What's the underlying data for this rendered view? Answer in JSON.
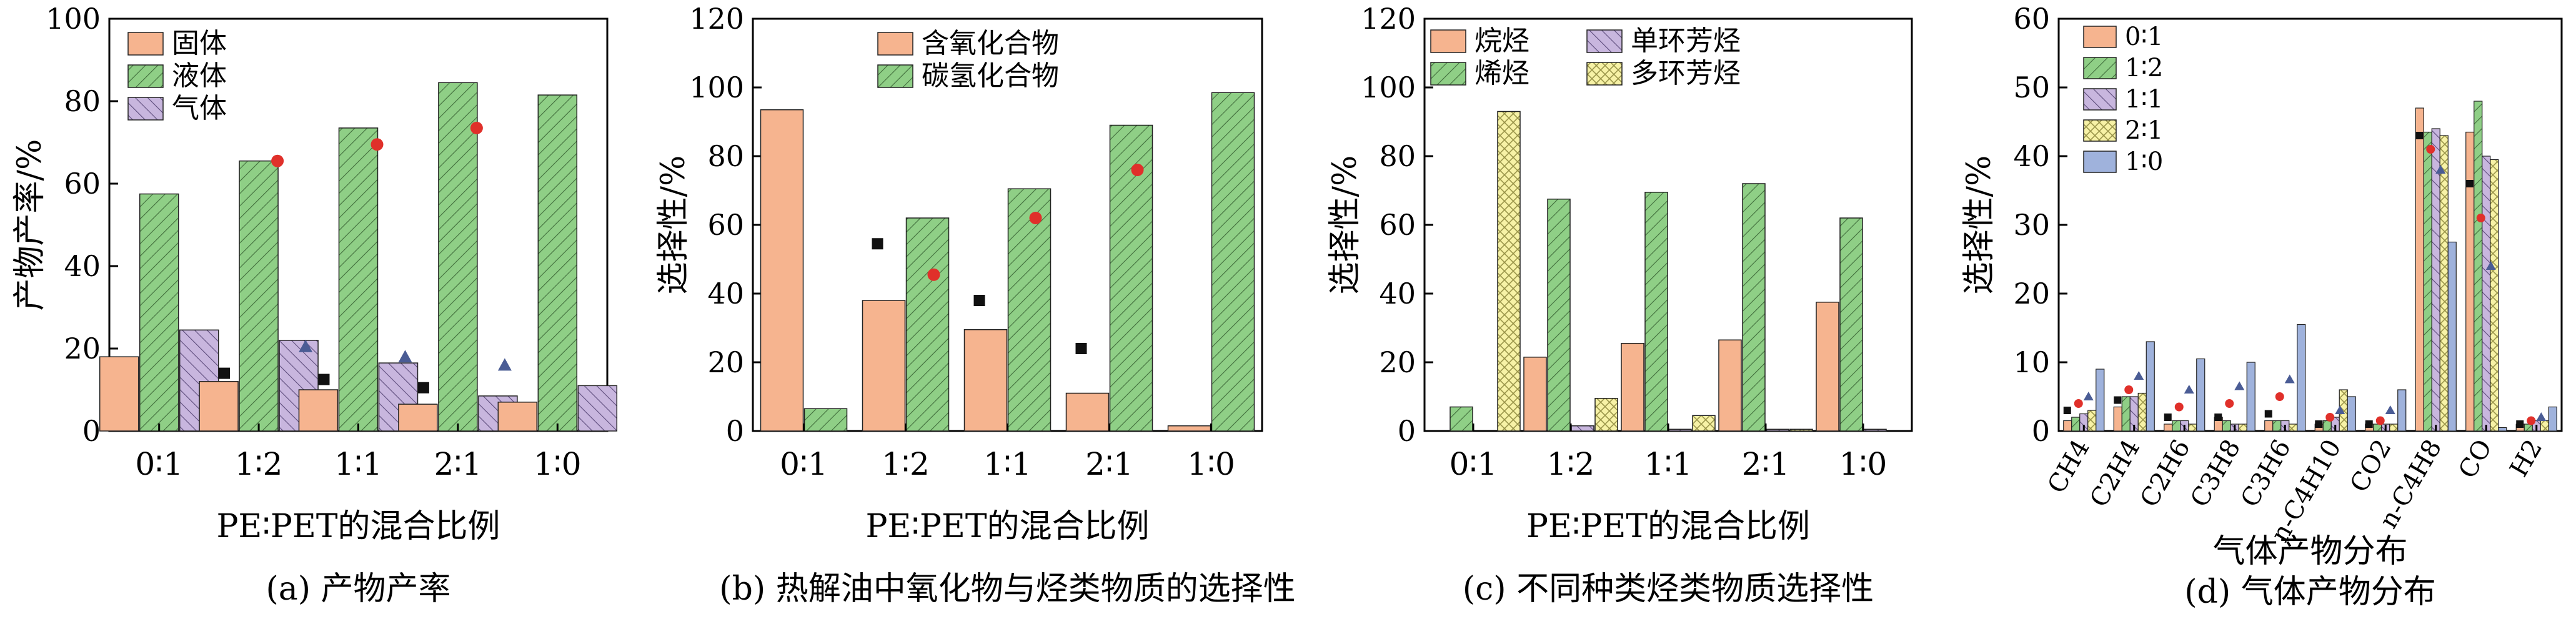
{
  "figure": {
    "charts": [
      {
        "subplot": "(a) 产物产率",
        "xlabel": "PE∶PET的混合比例",
        "ylabel": "产物产率/%",
        "ylim": [
          0,
          100
        ],
        "yticks": [
          0,
          20,
          40,
          60,
          80,
          100
        ],
        "categories": [
          "0∶1",
          "1∶2",
          "1∶1",
          "2∶1",
          "1∶0"
        ],
        "legend_position": "top-left"
      },
      {
        "subplot": "(b) 热解油中氧化物与烃类物质的选择性",
        "xlabel": "PE∶PET的混合比例",
        "ylabel": "选择性/%",
        "ylim": [
          0,
          120
        ],
        "yticks": [
          0,
          20,
          40,
          60,
          80,
          100,
          120
        ],
        "categories": [
          "0∶1",
          "1∶2",
          "1∶1",
          "2∶1",
          "1∶0"
        ],
        "legend_position": "top-left"
      },
      {
        "subplot": "(c) 不同种类烃类物质选择性",
        "xlabel": "PE∶PET的混合比例",
        "ylabel": "选择性/%",
        "ylim": [
          0,
          120
        ],
        "yticks": [
          0,
          20,
          40,
          60,
          80,
          100,
          120
        ],
        "categories": [
          "0∶1",
          "1∶2",
          "1∶1",
          "2∶1",
          "1∶0"
        ],
        "legend_position": "top-left"
      },
      {
        "subplot": "(d) 气体产物分布",
        "xlabel": "气体产物分布",
        "ylabel": "选择性/%",
        "ylim": [
          0,
          60
        ],
        "yticks": [
          0,
          10,
          20,
          30,
          40,
          50,
          60
        ],
        "legend_position": "top-left"
      }
    ]
  },
  "colors": {
    "salmon": "#f6b48f",
    "green": "#8fcf86",
    "purple": "#c8b6de",
    "yellow": "#f7f2a6",
    "blue": "#9fb2dc",
    "marker_black": "#111111",
    "marker_red": "#e0302a",
    "marker_navy": "#4a5c95"
  },
  "chart_data": [
    {
      "type": "bar",
      "categories": [
        "0∶1",
        "1∶2",
        "1∶1",
        "2∶1",
        "1∶0"
      ],
      "series": [
        {
          "name": "固体",
          "values": [
            18,
            12,
            10,
            6.5,
            7
          ]
        },
        {
          "name": "液体",
          "values": [
            57.5,
            65.5,
            73.5,
            84.5,
            81.5
          ]
        },
        {
          "name": "气体",
          "values": [
            24.5,
            22,
            16.5,
            8.5,
            11
          ]
        }
      ],
      "markers": [
        {
          "shape": "square",
          "values": [
            null,
            14,
            12.5,
            10.5,
            null
          ]
        },
        {
          "shape": "circle",
          "values": [
            null,
            65.5,
            69.5,
            73.5,
            null
          ]
        },
        {
          "shape": "triangle",
          "values": [
            null,
            20.5,
            18,
            16,
            null
          ]
        }
      ],
      "xlabel": "PE∶PET的混合比例",
      "ylabel": "产物产率/%",
      "ylim": [
        0,
        100
      ]
    },
    {
      "type": "bar",
      "categories": [
        "0∶1",
        "1∶2",
        "1∶1",
        "2∶1",
        "1∶0"
      ],
      "series": [
        {
          "name": "含氧化合物",
          "values": [
            93.5,
            38,
            29.5,
            11,
            1.5
          ]
        },
        {
          "name": "碳氢化合物",
          "values": [
            6.5,
            62,
            70.5,
            89,
            98.5
          ]
        }
      ],
      "markers": [
        {
          "shape": "square",
          "values": [
            null,
            54.5,
            38,
            24,
            null
          ]
        },
        {
          "shape": "circle",
          "values": [
            null,
            45.5,
            62,
            76,
            null
          ]
        }
      ],
      "xlabel": "PE∶PET的混合比例",
      "ylabel": "选择性/%",
      "ylim": [
        0,
        120
      ]
    },
    {
      "type": "bar",
      "categories": [
        "0∶1",
        "1∶2",
        "1∶1",
        "2∶1",
        "1∶0"
      ],
      "series": [
        {
          "name": "烷烃",
          "values": [
            0,
            21.5,
            25.5,
            26.5,
            37.5
          ]
        },
        {
          "name": "烯烃",
          "values": [
            7,
            67.5,
            69.5,
            72,
            62
          ]
        },
        {
          "name": "单环芳烃",
          "values": [
            0,
            1.5,
            0.5,
            0.5,
            0.5
          ]
        },
        {
          "name": "多环芳烃",
          "values": [
            93,
            9.5,
            4.5,
            0.5,
            0
          ]
        }
      ],
      "xlabel": "PE∶PET的混合比例",
      "ylabel": "选择性/%",
      "ylim": [
        0,
        120
      ]
    },
    {
      "type": "bar",
      "categories": [
        "CH4",
        "C2H4",
        "C2H6",
        "C3H8",
        "C3H6",
        "n-C4H10",
        "CO2",
        "n-C4H8",
        "CO",
        "H2"
      ],
      "series": [
        {
          "name": "0∶1",
          "values": [
            1.5,
            3.5,
            1,
            2,
            1.5,
            1,
            1,
            47,
            43.5,
            1
          ]
        },
        {
          "name": "1∶2",
          "values": [
            2,
            5,
            1.5,
            1.5,
            1.5,
            1.5,
            1,
            43.5,
            48,
            1
          ]
        },
        {
          "name": "1∶1",
          "values": [
            2.5,
            5,
            1.5,
            1,
            1.5,
            2,
            1,
            44,
            40,
            1.5
          ]
        },
        {
          "name": "2∶1",
          "values": [
            3,
            5.5,
            1,
            1,
            1,
            6,
            1,
            43,
            39.5,
            1.5
          ]
        },
        {
          "name": "1∶0",
          "values": [
            9,
            13,
            10.5,
            10,
            15.5,
            5,
            6,
            27.5,
            0.5,
            3.5
          ]
        }
      ],
      "markers": [
        {
          "shape": "square",
          "values": [
            3,
            4.5,
            2,
            2,
            2.5,
            1,
            1,
            43,
            36,
            1
          ]
        },
        {
          "shape": "circle",
          "values": [
            4,
            6,
            3.5,
            4,
            5,
            2,
            1.5,
            41,
            31,
            1.5
          ]
        },
        {
          "shape": "triangle",
          "values": [
            5,
            8,
            6,
            6.5,
            7.5,
            3,
            3,
            38,
            24,
            2
          ]
        }
      ],
      "xlabel": "气体产物分布",
      "ylabel": "选择性/%",
      "ylim": [
        0,
        60
      ]
    }
  ]
}
